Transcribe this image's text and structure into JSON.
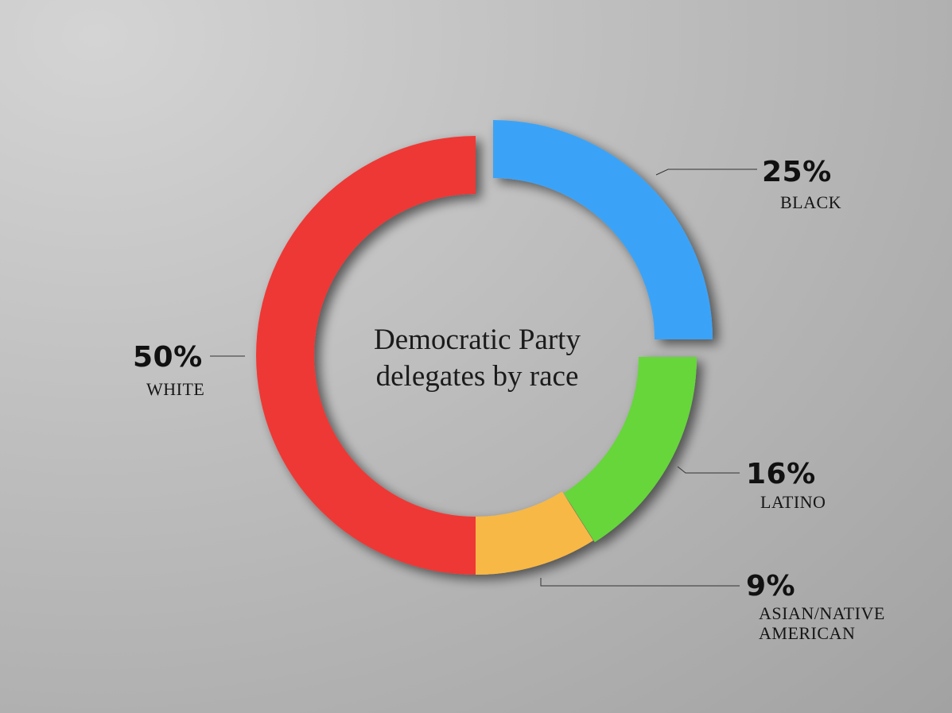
{
  "chart_data": {
    "type": "pie",
    "title_lines": [
      "Democratic Party",
      "delegates by race"
    ],
    "slices": [
      {
        "label": "BLACK",
        "value": 25,
        "value_label": "25%",
        "color": "#3aa3f7"
      },
      {
        "label": "LATINO",
        "value": 16,
        "value_label": "16%",
        "color": "#66d63b"
      },
      {
        "label": "ASIAN/NATIVE AMERICAN",
        "label_lines": [
          "ASIAN/NATIVE",
          "AMERICAN"
        ],
        "value": 9,
        "value_label": "9%",
        "color": "#f8b845"
      },
      {
        "label": "WHITE",
        "value": 50,
        "value_label": "50%",
        "color": "#ee3835"
      }
    ]
  }
}
